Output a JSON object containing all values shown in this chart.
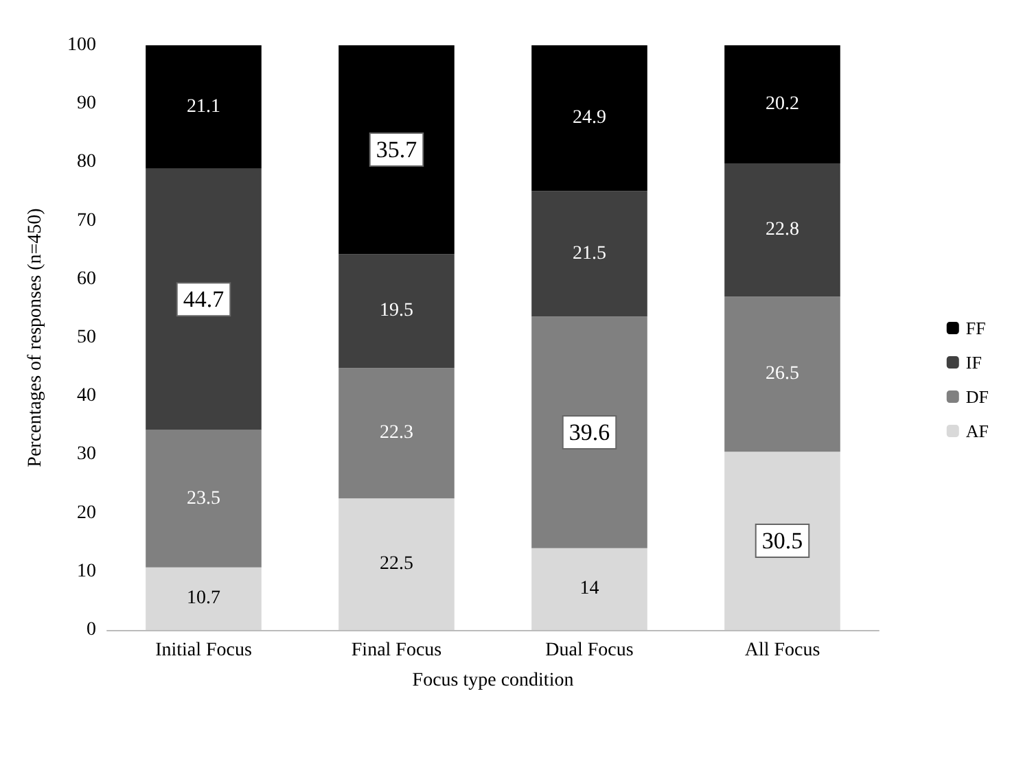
{
  "chart_data": {
    "type": "bar",
    "stacked": true,
    "xlabel": "Focus type condition",
    "ylabel": "Percentages of responses (n=450)",
    "categories": [
      "Initial Focus",
      "Final Focus",
      "Dual Focus",
      "All Focus"
    ],
    "series": [
      {
        "name": "AF",
        "color": "#d9d9d9",
        "values": [
          10.7,
          22.5,
          14,
          30.5
        ]
      },
      {
        "name": "DF",
        "color": "#808080",
        "values": [
          23.5,
          22.3,
          39.6,
          26.5
        ]
      },
      {
        "name": "IF",
        "color": "#404040",
        "values": [
          44.7,
          19.5,
          21.5,
          22.8
        ]
      },
      {
        "name": "FF",
        "color": "#000000",
        "values": [
          21.1,
          35.7,
          24.9,
          20.2
        ]
      }
    ],
    "ylim": [
      0,
      100
    ],
    "yticks": [
      0,
      10,
      20,
      30,
      40,
      50,
      60,
      70,
      80,
      90,
      100
    ],
    "grid": false,
    "legend": "right",
    "data_labels": true
  }
}
